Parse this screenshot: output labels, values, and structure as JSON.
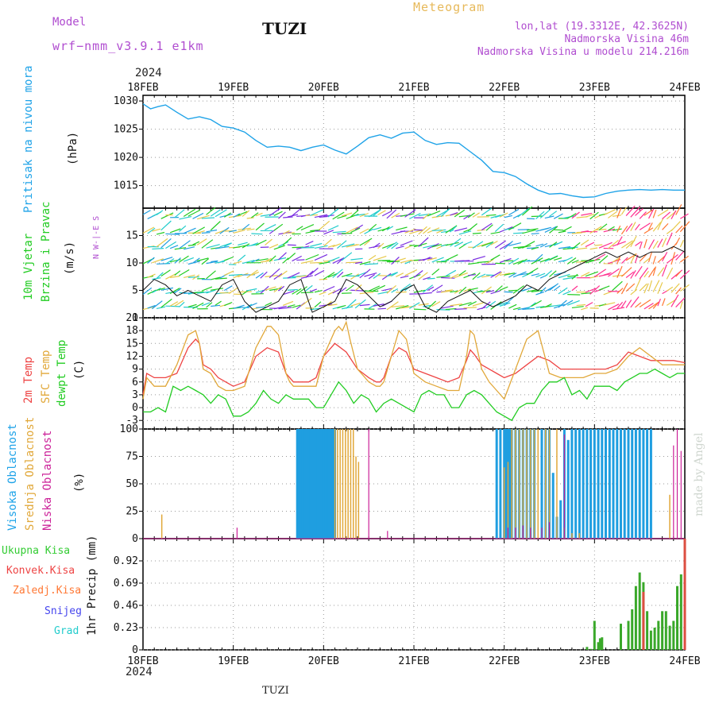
{
  "header": {
    "model_label": "Model",
    "model_run": "wrf−nmm_v3.9.1  e1km",
    "site": "TUZI",
    "meteogram": "Meteogram",
    "lonlat": "lon,lat (19.3312E, 42.3625N)",
    "altitude": "Nadmorska Visina 46m",
    "model_altitude": "Nadmorska Visina u modelu 214.216m",
    "year": "2024",
    "footer_site": "TUZI",
    "watermark": "made by Angel"
  },
  "time_axis": {
    "labels": [
      "18FEB",
      "19FEB",
      "20FEB",
      "21FEB",
      "22FEB",
      "23FEB",
      "24FEB"
    ],
    "hours": 144
  },
  "panel_labels": {
    "pressure": [
      "Pritisak na nivou mora",
      "(hPa)"
    ],
    "wind": [
      "10m Vjetar",
      "Brzina i Pravac",
      "(m/s)"
    ],
    "wind_compass": "N  W-|-E  S",
    "temp": [
      "2m Temp",
      "SFC Temp",
      "dewpt Temp",
      "(C)"
    ],
    "cloud": [
      "Visoka Oblacnost",
      "Srednja Oblacnost",
      "Niska Oblacnost",
      "(%)"
    ],
    "precip_legend": [
      "Ukupna Kisa",
      "Konvek.Kisa",
      "Zaledj.Kisa",
      "Snijeg",
      "Grad"
    ],
    "precip_axis": "1hr Precip (mm)"
  },
  "colors": {
    "pressure": "#1fa3e8",
    "t2m": "#ee4444",
    "tsfc": "#e1a83a",
    "dewpt": "#22cc22",
    "high_cloud": "#1f9ee0",
    "mid_cloud": "#e1a83a",
    "low_cloud": "#cc2299",
    "total_rain": "#33cc33",
    "conv_rain": "#ee4444",
    "frz_rain": "#ff7733",
    "snow": "#4444ee",
    "hail": "#22cccc",
    "wind_model": "#22cc22"
  },
  "chart_data": [
    {
      "type": "line",
      "title": "",
      "ylabel": "Pritisak na nivou mora (hPa)",
      "ylim": [
        1011,
        1031
      ],
      "yticks": [
        1015,
        1020,
        1025,
        1030
      ],
      "series": [
        {
          "name": "Pritisak na nivou mora",
          "x": [
            0,
            2,
            4,
            6,
            9,
            12,
            15,
            18,
            21,
            24,
            27,
            30,
            33,
            36,
            39,
            42,
            45,
            48,
            51,
            54,
            57,
            60,
            63,
            66,
            69,
            72,
            75,
            78,
            81,
            84,
            87,
            90,
            93,
            96,
            99,
            102,
            105,
            108,
            111,
            114,
            117,
            120,
            123,
            126,
            129,
            132,
            135,
            138,
            141,
            144
          ],
          "values": [
            1029.5,
            1028.6,
            1029.0,
            1029.3,
            1028.0,
            1026.8,
            1027.2,
            1026.7,
            1025.5,
            1025.2,
            1024.5,
            1023.0,
            1021.8,
            1022.0,
            1021.8,
            1021.2,
            1021.8,
            1022.2,
            1021.3,
            1020.6,
            1022.0,
            1023.5,
            1024.0,
            1023.4,
            1024.3,
            1024.5,
            1023.0,
            1022.3,
            1022.6,
            1022.5,
            1021.0,
            1019.5,
            1017.5,
            1017.3,
            1016.6,
            1015.3,
            1014.2,
            1013.5,
            1013.6,
            1013.2,
            1012.9,
            1013.0,
            1013.6,
            1014.0,
            1014.2,
            1014.3,
            1014.2,
            1014.3,
            1014.2,
            1014.2
          ]
        }
      ]
    },
    {
      "type": "line",
      "title": "",
      "ylabel": "Brzina i Pravac (m/s)",
      "ylim": [
        0,
        20
      ],
      "yticks": [
        0,
        5,
        10,
        15
      ],
      "series": [
        {
          "name": "10m Vjetar",
          "x": [
            0,
            3,
            6,
            9,
            12,
            15,
            18,
            21,
            24,
            27,
            30,
            33,
            36,
            39,
            42,
            45,
            48,
            51,
            54,
            57,
            60,
            63,
            66,
            69,
            72,
            75,
            78,
            81,
            84,
            87,
            90,
            93,
            96,
            99,
            102,
            105,
            108,
            111,
            114,
            117,
            120,
            123,
            126,
            129,
            132,
            135,
            138,
            141,
            144
          ],
          "values": [
            5,
            7,
            6,
            4,
            5,
            4,
            3,
            6,
            7,
            3,
            1,
            2,
            3,
            6,
            7,
            1,
            2,
            3,
            7,
            6,
            4,
            2,
            3,
            5,
            6,
            2,
            1,
            3,
            4,
            5,
            3,
            2,
            3,
            4,
            6,
            5,
            7,
            8,
            9,
            10,
            11,
            12,
            11,
            12,
            11,
            12,
            12,
            13,
            12
          ]
        }
      ]
    },
    {
      "type": "line",
      "title": "",
      "ylabel": "(C)",
      "ylim": [
        -5,
        21
      ],
      "yticks": [
        -3,
        0,
        3,
        6,
        9,
        12,
        15,
        18,
        21
      ],
      "series": [
        {
          "name": "2m Temp",
          "x": [
            0,
            1,
            3,
            6,
            9,
            12,
            14,
            15,
            16,
            18,
            20,
            22,
            24,
            27,
            30,
            33,
            36,
            38,
            39,
            40,
            42,
            44,
            46,
            48,
            51,
            54,
            57,
            60,
            62,
            63,
            64,
            66,
            68,
            70,
            72,
            75,
            78,
            81,
            84,
            86,
            87,
            88,
            90,
            92,
            94,
            96,
            99,
            102,
            105,
            108,
            111,
            114,
            117,
            120,
            123,
            126,
            129,
            132,
            135,
            138,
            141,
            144
          ],
          "values": [
            3,
            8,
            7,
            7,
            8,
            14,
            16,
            15,
            10,
            9,
            7,
            6,
            5,
            6,
            12,
            14,
            13,
            8,
            7,
            6,
            6,
            6,
            7,
            12,
            15,
            13,
            9,
            7,
            6,
            6,
            7,
            12,
            14,
            13,
            9,
            8,
            7,
            6,
            7,
            11,
            13.5,
            12.5,
            10,
            9,
            8,
            7,
            8,
            10,
            12,
            11,
            9,
            9,
            9,
            9,
            9,
            10,
            13,
            12,
            11,
            11,
            11,
            10.5
          ]
        },
        {
          "name": "SFC Temp",
          "x": [
            0,
            1,
            3,
            6,
            9,
            12,
            14,
            15,
            16,
            18,
            20,
            22,
            24,
            27,
            30,
            33,
            34,
            36,
            38,
            39,
            40,
            42,
            44,
            46,
            48,
            51,
            52,
            53,
            54,
            55,
            57,
            60,
            62,
            63,
            64,
            66,
            68,
            70,
            72,
            75,
            78,
            81,
            84,
            86,
            87,
            88,
            90,
            92,
            94,
            96,
            99,
            102,
            105,
            108,
            111,
            114,
            117,
            120,
            123,
            126,
            129,
            132,
            135,
            138,
            141,
            144
          ],
          "values": [
            2,
            7,
            5,
            5,
            10,
            17,
            18,
            15,
            9,
            8,
            5,
            4,
            4,
            5,
            14,
            19,
            19,
            17,
            8,
            6,
            5,
            5,
            5,
            5,
            12,
            18,
            19,
            18,
            20,
            16,
            9,
            6,
            5,
            5,
            6,
            12,
            18,
            16,
            8,
            6,
            5,
            4,
            4,
            12,
            18,
            17,
            9,
            6,
            4,
            2,
            9,
            16,
            18,
            8,
            7,
            7,
            7,
            8,
            8,
            9,
            12,
            14,
            12,
            10,
            10,
            10
          ]
        },
        {
          "name": "dewpt Temp",
          "x": [
            0,
            2,
            4,
            6,
            8,
            10,
            12,
            14,
            16,
            18,
            20,
            22,
            24,
            26,
            28,
            30,
            32,
            34,
            36,
            38,
            40,
            42,
            44,
            46,
            48,
            50,
            52,
            54,
            56,
            58,
            60,
            62,
            64,
            66,
            68,
            70,
            72,
            74,
            76,
            78,
            80,
            82,
            84,
            86,
            88,
            90,
            92,
            94,
            96,
            98,
            100,
            102,
            104,
            106,
            108,
            110,
            112,
            114,
            116,
            118,
            120,
            122,
            124,
            126,
            128,
            130,
            132,
            134,
            136,
            138,
            140,
            142,
            144
          ],
          "values": [
            -1,
            -1,
            0,
            -1,
            5,
            4,
            5,
            4,
            3,
            1,
            3,
            2,
            -2,
            -2,
            -1,
            1,
            4,
            2,
            1,
            3,
            2,
            2,
            2,
            0,
            0,
            3,
            6,
            4,
            1,
            3,
            2,
            -1,
            1,
            2,
            1,
            0,
            -1,
            3,
            4,
            3,
            3,
            0,
            0,
            3,
            4,
            3,
            1,
            -1,
            -2,
            -3,
            0,
            1,
            1,
            4,
            6,
            6,
            7,
            3,
            4,
            2,
            5,
            5,
            5,
            4,
            6,
            7,
            8,
            8,
            9,
            8,
            7,
            8,
            8
          ]
        }
      ]
    },
    {
      "type": "bar",
      "title": "",
      "ylabel": "(%)",
      "ylim": [
        0,
        100
      ],
      "yticks": [
        0,
        25,
        50,
        75,
        100
      ],
      "series": [
        {
          "name": "Visoka Oblacnost",
          "x": [
            41,
            41.5,
            42,
            42.5,
            43,
            43.5,
            44,
            44.5,
            45,
            45.5,
            46,
            46.5,
            47,
            47.5,
            48,
            48.5,
            49,
            49.5,
            50,
            50.5,
            51,
            94,
            95,
            96,
            96.5,
            97,
            97.5,
            98,
            99,
            100,
            101,
            102,
            103,
            104,
            106,
            107,
            108,
            109,
            110,
            111,
            112,
            113,
            114,
            115,
            116,
            117,
            118,
            119,
            120,
            121,
            122,
            123,
            124,
            125,
            126,
            127,
            128,
            129,
            130,
            131,
            132,
            133,
            134,
            135
          ],
          "values": [
            100,
            100,
            100,
            100,
            100,
            100,
            100,
            100,
            100,
            100,
            100,
            100,
            100,
            100,
            100,
            100,
            100,
            100,
            100,
            100,
            100,
            100,
            100,
            100,
            100,
            100,
            100,
            100,
            100,
            100,
            100,
            100,
            100,
            100,
            100,
            100,
            100,
            60,
            20,
            35,
            100,
            90,
            100,
            100,
            100,
            100,
            100,
            100,
            100,
            100,
            100,
            100,
            100,
            100,
            100,
            100,
            100,
            100,
            100,
            100,
            100,
            100,
            100,
            100
          ]
        },
        {
          "name": "Srednja Oblacnost",
          "x": [
            5,
            51,
            51.7,
            52.4,
            53.1,
            53.8,
            54.5,
            55.2,
            55.9,
            56.6,
            57.3,
            96,
            97,
            98,
            99,
            100,
            101,
            102,
            103,
            104,
            105,
            107,
            108,
            110,
            112,
            114,
            116,
            140
          ],
          "values": [
            22,
            100,
            100,
            100,
            100,
            100,
            100,
            100,
            100,
            75,
            70,
            65,
            70,
            100,
            100,
            100,
            100,
            100,
            100,
            100,
            100,
            100,
            100,
            100,
            10,
            5,
            5,
            40
          ]
        },
        {
          "name": "Niska Oblacnost",
          "x": [
            25,
            60,
            65,
            97,
            99,
            101,
            103,
            106,
            108,
            112,
            141,
            142,
            143
          ],
          "values": [
            10,
            100,
            7,
            10,
            10,
            12,
            10,
            10,
            15,
            95,
            85,
            100,
            80
          ]
        }
      ]
    },
    {
      "type": "bar",
      "title": "",
      "ylabel": "1hr Precip (mm)",
      "ylim": [
        0,
        1.15
      ],
      "yticks": [
        0,
        0.23,
        0.46,
        0.69,
        0.92
      ],
      "series": [
        {
          "name": "Ukupna Kisa",
          "x": [
            118,
            119,
            120,
            121,
            121.5,
            122,
            127,
            129,
            130,
            131,
            132,
            133,
            134,
            135,
            136,
            137,
            138,
            139,
            140,
            141,
            142,
            143,
            144
          ],
          "values": [
            0.03,
            0.01,
            0.3,
            0.08,
            0.12,
            0.13,
            0.27,
            0.3,
            0.42,
            0.66,
            0.8,
            0.7,
            0.4,
            0.2,
            0.23,
            0.3,
            0.4,
            0.4,
            0.25,
            0.3,
            0.66,
            0.78,
            1.15
          ]
        },
        {
          "name": "Konvek.Kisa",
          "x": [
            133,
            144
          ],
          "values": [
            0.6,
            1.15
          ]
        }
      ]
    }
  ]
}
